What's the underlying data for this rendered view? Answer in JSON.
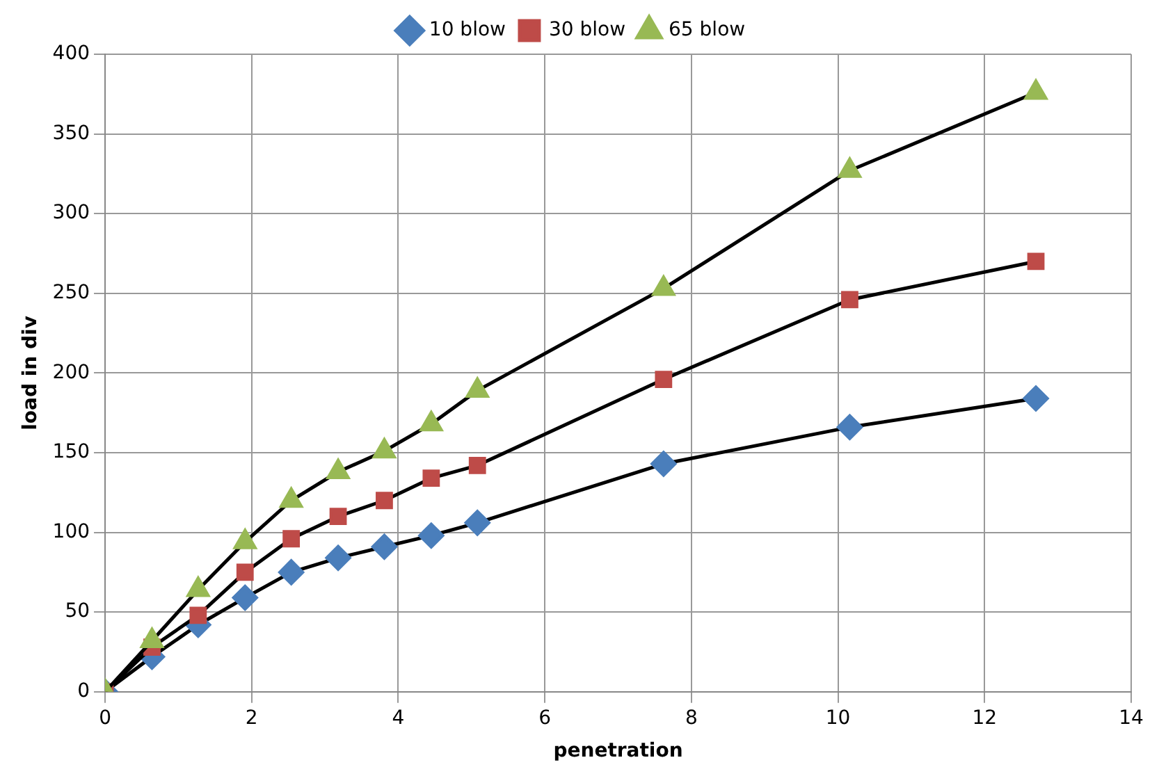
{
  "chart_data": {
    "type": "line",
    "xlabel": "penetration",
    "ylabel": "load in div",
    "x": [
      0,
      0.64,
      1.27,
      1.91,
      2.54,
      3.18,
      3.81,
      4.45,
      5.08,
      7.62,
      10.16,
      12.7
    ],
    "series": [
      {
        "name": "10 blow",
        "color": "#4a7ebb",
        "marker": "diamond",
        "values": [
          0,
          22,
          42,
          59,
          75,
          84,
          91,
          98,
          106,
          143,
          166,
          184
        ]
      },
      {
        "name": "30 blow",
        "color": "#be4b48",
        "marker": "square",
        "values": [
          0,
          28,
          48,
          75,
          96,
          110,
          120,
          134,
          142,
          196,
          246,
          270
        ]
      },
      {
        "name": "65 blow",
        "color": "#98b954",
        "marker": "triangle",
        "values": [
          0,
          32,
          64,
          94,
          120,
          138,
          151,
          168,
          189,
          253,
          327,
          376
        ]
      }
    ],
    "xlim": [
      0,
      14
    ],
    "xticks": [
      0,
      2,
      4,
      6,
      8,
      10,
      12,
      14
    ],
    "ylim": [
      0,
      400
    ],
    "yticks": [
      0,
      50,
      100,
      150,
      200,
      250,
      300,
      350,
      400
    ],
    "grid": true,
    "legend": "top",
    "line_style": "solid"
  }
}
